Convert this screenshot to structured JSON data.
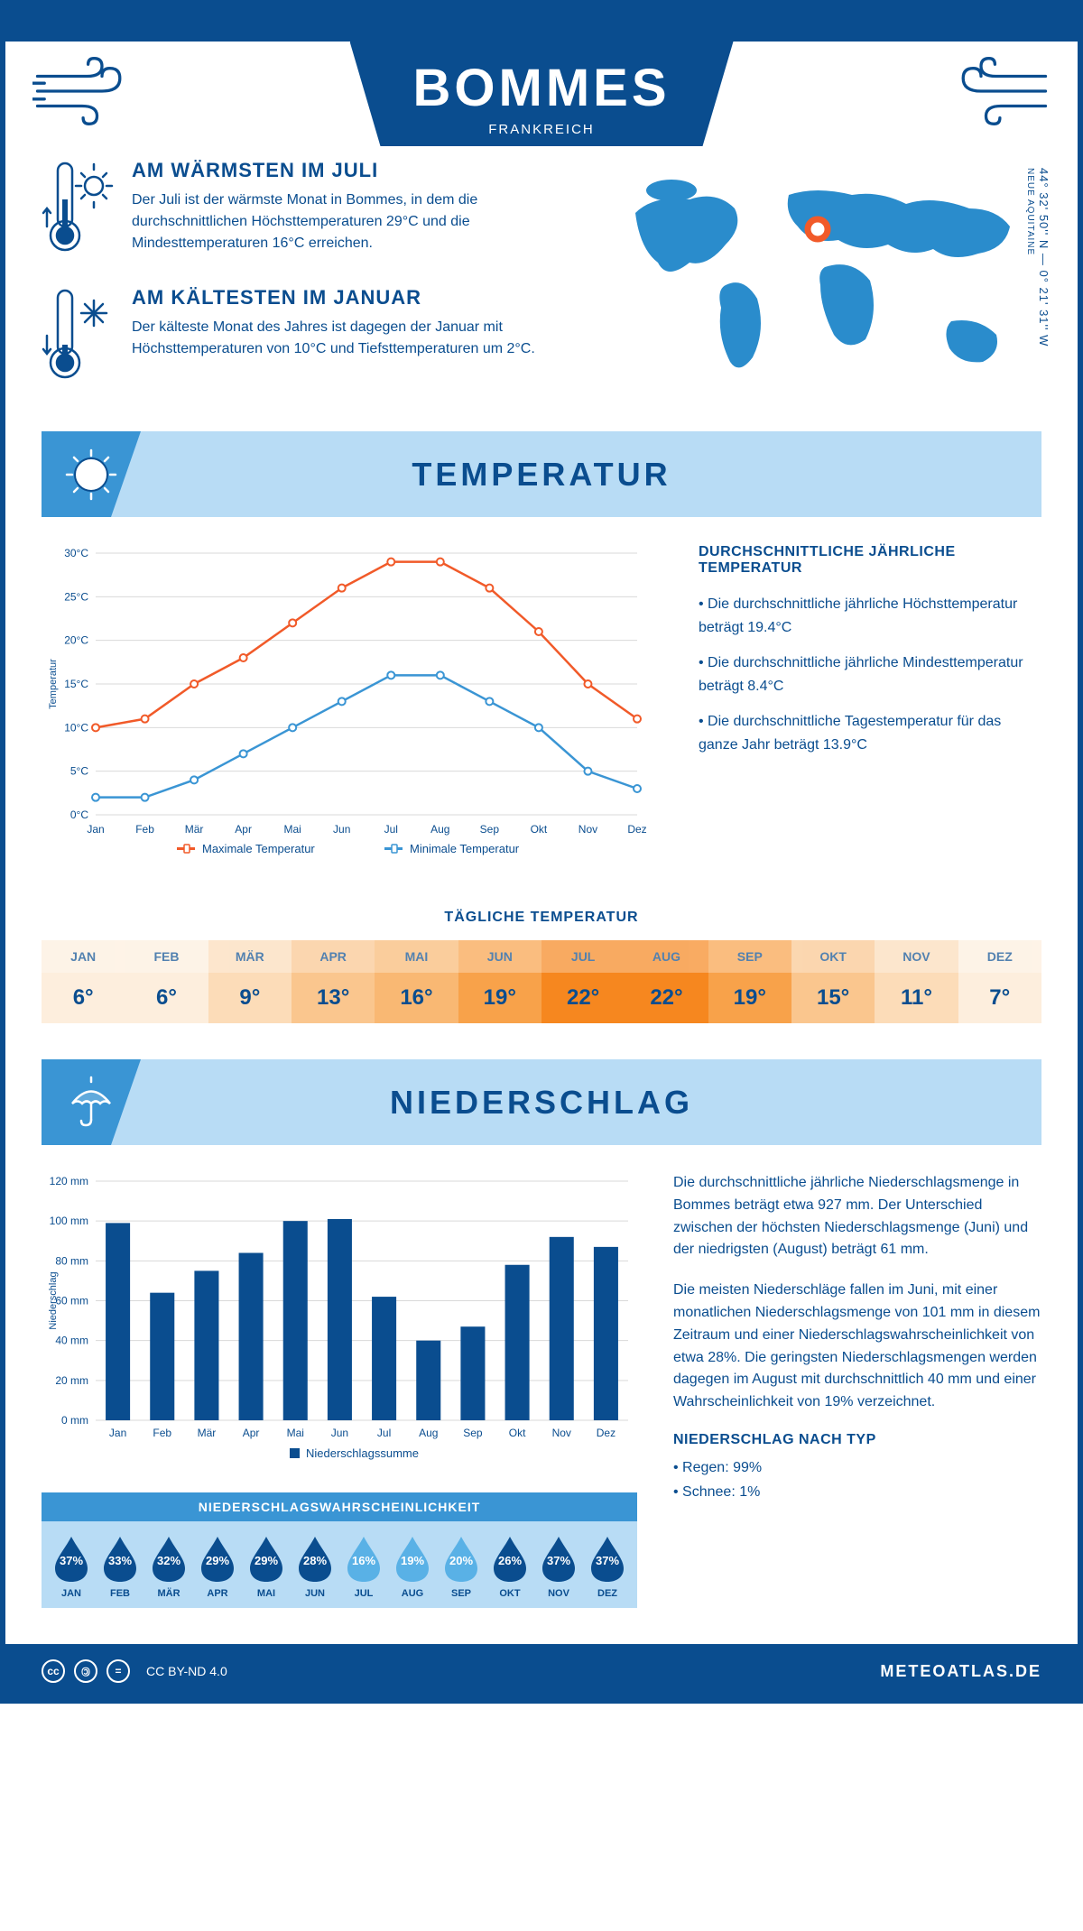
{
  "header": {
    "title": "BOMMES",
    "subtitle": "FRANKREICH"
  },
  "coords": {
    "lat": "44° 32' 50'' N — 0° 21' 31'' W",
    "region": "NEUE AQUITAINE"
  },
  "intro": {
    "warm": {
      "title": "AM WÄRMSTEN IM JULI",
      "text": "Der Juli ist der wärmste Monat in Bommes, in dem die durchschnittlichen Höchsttemperaturen 29°C und die Mindesttemperaturen 16°C erreichen."
    },
    "cold": {
      "title": "AM KÄLTESTEN IM JANUAR",
      "text": "Der kälteste Monat des Jahres ist dagegen der Januar mit Höchsttemperaturen von 10°C und Tiefsttemperaturen um 2°C."
    }
  },
  "months": [
    "Jan",
    "Feb",
    "Mär",
    "Apr",
    "Mai",
    "Jun",
    "Jul",
    "Aug",
    "Sep",
    "Okt",
    "Nov",
    "Dez"
  ],
  "months_upper": [
    "JAN",
    "FEB",
    "MÄR",
    "APR",
    "MAI",
    "JUN",
    "JUL",
    "AUG",
    "SEP",
    "OKT",
    "NOV",
    "DEZ"
  ],
  "temp_section": {
    "title": "TEMPERATUR",
    "chart": {
      "type": "line",
      "ylabel": "Temperatur",
      "ylim": [
        0,
        30
      ],
      "ytick_step": 5,
      "ytick_suffix": "°C",
      "max_series": {
        "label": "Maximale Temperatur",
        "color": "#f15a29",
        "values": [
          10,
          11,
          15,
          18,
          22,
          26,
          29,
          29,
          26,
          21,
          15,
          11
        ]
      },
      "min_series": {
        "label": "Minimale Temperatur",
        "color": "#3a95d4",
        "values": [
          2,
          2,
          4,
          7,
          10,
          13,
          16,
          16,
          13,
          10,
          5,
          3
        ]
      },
      "grid_color": "#d9d9d9",
      "background": "#ffffff",
      "line_width": 2.5,
      "marker": "circle",
      "marker_size": 4
    },
    "info": {
      "title": "DURCHSCHNITTLICHE JÄHRLICHE TEMPERATUR",
      "bullets": [
        "• Die durchschnittliche jährliche Höchsttemperatur beträgt 19.4°C",
        "• Die durchschnittliche jährliche Mindesttemperatur beträgt 8.4°C",
        "• Die durchschnittliche Tagestemperatur für das ganze Jahr beträgt 13.9°C"
      ]
    },
    "daily_title": "TÄGLICHE TEMPERATUR",
    "daily": {
      "values": [
        "6°",
        "6°",
        "9°",
        "13°",
        "16°",
        "19°",
        "22°",
        "22°",
        "19°",
        "15°",
        "11°",
        "7°"
      ],
      "colors": [
        "#fdeedd",
        "#fdeedd",
        "#fcdcb8",
        "#fac68e",
        "#f9b873",
        "#f8a24a",
        "#f6871f",
        "#f6871f",
        "#f8a24a",
        "#fac68e",
        "#fcdcb8",
        "#fdeedd"
      ]
    }
  },
  "precip_section": {
    "title": "NIEDERSCHLAG",
    "chart": {
      "type": "bar",
      "ylabel": "Niederschlag",
      "ylim": [
        0,
        120
      ],
      "ytick_step": 20,
      "ytick_suffix": " mm",
      "bar_color": "#0a4d8f",
      "values": [
        99,
        64,
        75,
        84,
        100,
        101,
        62,
        40,
        47,
        78,
        92,
        87
      ],
      "legend": "Niederschlagssumme",
      "grid_color": "#d9d9d9",
      "bar_width": 0.55
    },
    "prob": {
      "title": "NIEDERSCHLAGSWAHRSCHEINLICHKEIT",
      "values": [
        "37%",
        "33%",
        "32%",
        "29%",
        "29%",
        "28%",
        "16%",
        "19%",
        "20%",
        "26%",
        "37%",
        "37%"
      ],
      "colors": [
        "#0a4d8f",
        "#0a4d8f",
        "#0a4d8f",
        "#0a4d8f",
        "#0a4d8f",
        "#0a4d8f",
        "#59b1e6",
        "#59b1e6",
        "#59b1e6",
        "#0a4d8f",
        "#0a4d8f",
        "#0a4d8f"
      ]
    },
    "info": {
      "p1": "Die durchschnittliche jährliche Niederschlagsmenge in Bommes beträgt etwa 927 mm. Der Unterschied zwischen der höchsten Niederschlagsmenge (Juni) und der niedrigsten (August) beträgt 61 mm.",
      "p2": "Die meisten Niederschläge fallen im Juni, mit einer monatlichen Niederschlagsmenge von 101 mm in diesem Zeitraum und einer Niederschlagswahrscheinlichkeit von etwa 28%. Die geringsten Niederschlagsmengen werden dagegen im August mit durchschnittlich 40 mm und einer Wahrscheinlichkeit von 19% verzeichnet.",
      "type_title": "NIEDERSCHLAG NACH TYP",
      "types": [
        "• Regen: 99%",
        "• Schnee: 1%"
      ]
    }
  },
  "footer": {
    "license": "CC BY-ND 4.0",
    "site": "METEOATLAS.DE"
  },
  "colors": {
    "primary": "#0a4d8f",
    "light": "#b8dcf5",
    "mid": "#3a95d4",
    "orange": "#f15a29"
  }
}
